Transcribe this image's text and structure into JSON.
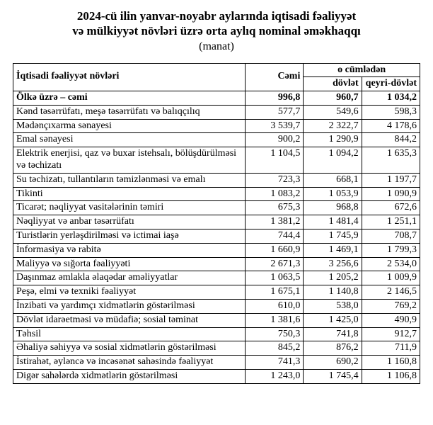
{
  "header": {
    "title_line1": "2024-cü ilin yanvar-noyabr aylarında iqtisadi fəaliyyət",
    "title_line2": "və mülkiyyət növləri üzrə orta aylıq nominal əməkhaqqı",
    "unit": "(manat)"
  },
  "table": {
    "columns": {
      "activity": "İqtisadi fəaliyyət növləri",
      "total": "Cəmi",
      "including": "o cümlədən",
      "state": "dövlət",
      "nonstate": "qeyri-dövlət"
    },
    "total_row": {
      "label": "Ölkə üzrə – cəmi",
      "total": "996,8",
      "state": "960,7",
      "nonstate": "1 034,2"
    },
    "rows": [
      {
        "label": "Kənd təsərrüfatı, meşə təsərrüfatı və balıqçılıq",
        "total": "577,7",
        "state": "549,6",
        "nonstate": "598,3"
      },
      {
        "label": "Mədənçıxarma sənayesi",
        "total": "3 539,7",
        "state": "2 322,7",
        "nonstate": "4 178,6"
      },
      {
        "label": "Emal sənayesi",
        "total": "900,2",
        "state": "1 290,9",
        "nonstate": "844,2"
      },
      {
        "label": "Elektrik enerjisi, qaz və buxar istehsalı, bölüşdürülməsi və təchizatı",
        "total": "1 104,5",
        "state": "1 094,2",
        "nonstate": "1 635,3"
      },
      {
        "label": "Su təchizatı, tullantıların təmizlənməsi və emalı",
        "total": "723,3",
        "state": "668,1",
        "nonstate": "1 197,7"
      },
      {
        "label": "Tikinti",
        "total": "1 083,2",
        "state": "1 053,9",
        "nonstate": "1 090,9"
      },
      {
        "label": "Ticarət; nəqliyyat vasitələrinin təmiri",
        "total": "675,3",
        "state": "968,8",
        "nonstate": "672,6"
      },
      {
        "label": "Nəqliyyat və anbar təsərrüfatı",
        "total": "1 381,2",
        "state": "1 481,4",
        "nonstate": "1 251,1"
      },
      {
        "label": "Turistlərin yerləşdirilməsi və ictimai iaşə",
        "total": "744,4",
        "state": "1 745,9",
        "nonstate": "708,7"
      },
      {
        "label": "İnformasiya və rabitə",
        "total": "1 660,9",
        "state": "1 469,1",
        "nonstate": "1 799,3"
      },
      {
        "label": "Maliyyə və sığorta fəaliyyəti",
        "total": "2 671,3",
        "state": "3 256,6",
        "nonstate": "2 534,0"
      },
      {
        "label": "Daşınmaz əmlakla əlaqədar əməliyyatlar",
        "total": "1 063,5",
        "state": "1 205,2",
        "nonstate": "1 009,9"
      },
      {
        "label": "Peşə, elmi və texniki fəaliyyət",
        "total": "1 675,1",
        "state": "1 140,8",
        "nonstate": "2 146,5"
      },
      {
        "label": "İnzibati və yardımçı xidmətlərin göstərilməsi",
        "total": "610,0",
        "state": "538,0",
        "nonstate": "769,2"
      },
      {
        "label": "Dövlət idarəetməsi və müdafiə; sosial təminat",
        "total": "1 381,6",
        "state": "1 425,0",
        "nonstate": "490,9"
      },
      {
        "label": "Təhsil",
        "total": "750,3",
        "state": "741,8",
        "nonstate": "912,7"
      },
      {
        "label": "Əhaliyə səhiyyə və sosial xidmətlərin göstərilməsi",
        "total": "845,2",
        "state": "876,2",
        "nonstate": "711,9"
      },
      {
        "label": "İstirahət, əyləncə və incəsənət sahəsində fəaliyyət",
        "total": "741,3",
        "state": "690,2",
        "nonstate": "1 160,8"
      },
      {
        "label": "Digər sahələrdə xidmətlərin göstərilməsi",
        "total": "1 243,0",
        "state": "1 745,4",
        "nonstate": "1 106,8"
      }
    ]
  }
}
